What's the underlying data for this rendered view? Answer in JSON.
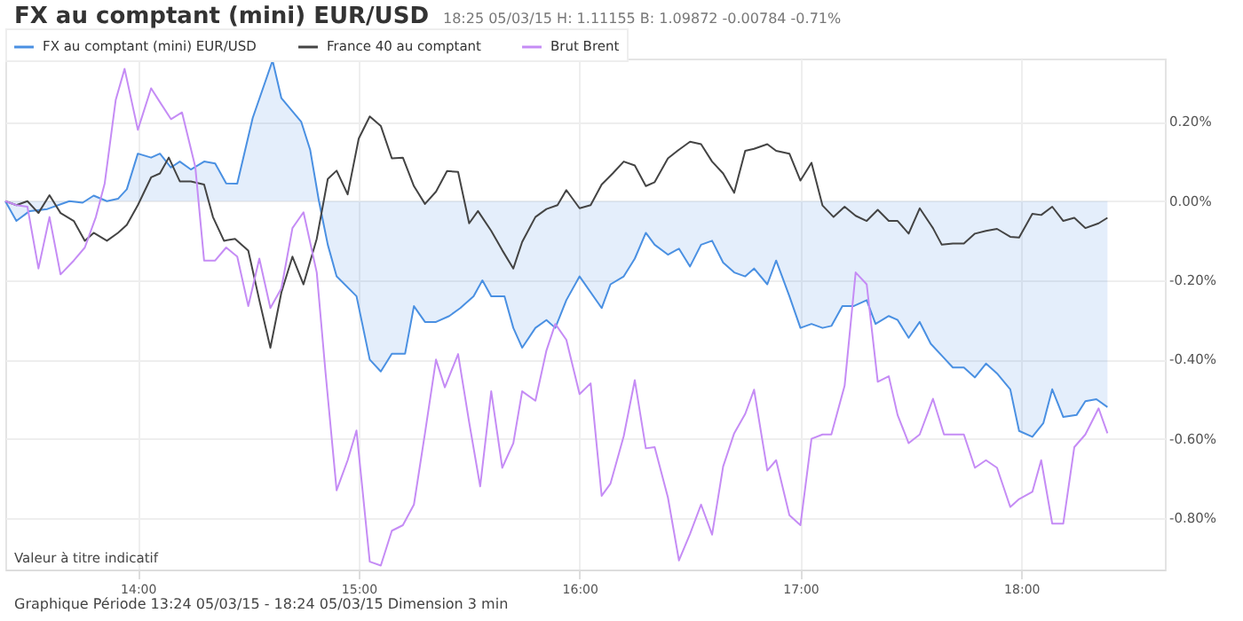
{
  "chart_data": {
    "type": "line",
    "title": "FX au comptant (mini) EUR/USD",
    "subtitle": "18:25 05/03/15   H: 1.11155  B: 1.09872  -0.00784  -0.71%",
    "annotations": [
      "Valeur à titre indicatif",
      "Graphique Période 13:24 05/03/15 - 18:24 05/03/15   Dimension 3 min"
    ],
    "xlim": [
      13.4,
      18.65
    ],
    "xticks": [
      {
        "value": 14,
        "label": "14:00"
      },
      {
        "value": 15,
        "label": "15:00"
      },
      {
        "value": 16,
        "label": "16:00"
      },
      {
        "value": 17,
        "label": "17:00"
      },
      {
        "value": 18,
        "label": "18:00"
      }
    ],
    "ylim": [
      -0.93,
      0.36
    ],
    "yticks": [
      {
        "value": 0.2,
        "label": "0.20%"
      },
      {
        "value": 0,
        "label": "0.00%"
      },
      {
        "value": -0.2,
        "label": "-0.20%"
      },
      {
        "value": -0.4,
        "label": "-0.40%"
      },
      {
        "value": -0.6,
        "label": "-0.60%"
      },
      {
        "value": -0.8,
        "label": "-0.80%"
      }
    ],
    "grid": true,
    "legend": "top left",
    "series": [
      {
        "name": "FX au comptant (mini) EUR/USD",
        "type": "area",
        "color": "#4a90e2",
        "x": [
          13.4,
          13.45,
          13.51,
          13.59,
          13.69,
          13.75,
          13.8,
          13.86,
          13.91,
          13.95,
          14.0,
          14.06,
          14.1,
          14.15,
          14.19,
          14.24,
          14.3,
          14.35,
          14.4,
          14.45,
          14.52,
          14.61,
          14.65,
          14.74,
          14.78,
          14.82,
          14.86,
          14.9,
          14.99,
          15.05,
          15.1,
          15.15,
          15.21,
          15.25,
          15.3,
          15.35,
          15.41,
          15.46,
          15.52,
          15.56,
          15.6,
          15.66,
          15.7,
          15.74,
          15.8,
          15.85,
          15.89,
          15.94,
          16.0,
          16.1,
          16.14,
          16.2,
          16.25,
          16.3,
          16.34,
          16.4,
          16.45,
          16.5,
          16.55,
          16.6,
          16.65,
          16.7,
          16.75,
          16.79,
          16.85,
          16.89,
          16.95,
          17.0,
          17.05,
          17.1,
          17.14,
          17.19,
          17.24,
          17.3,
          17.34,
          17.4,
          17.44,
          17.49,
          17.54,
          17.59,
          17.64,
          17.69,
          17.74,
          17.79,
          17.84,
          17.89,
          17.95,
          17.99,
          18.05,
          18.1,
          18.14,
          18.19,
          18.25,
          18.29,
          18.34,
          18.39
        ],
        "values": [
          0,
          -0.05,
          -0.025,
          -0.02,
          0,
          -0.004,
          0.014,
          0,
          0.006,
          0.03,
          0.12,
          0.11,
          0.12,
          0.085,
          0.1,
          0.08,
          0.1,
          0.095,
          0.045,
          0.044,
          0.21,
          0.355,
          0.26,
          0.2,
          0.13,
          0,
          -0.11,
          -0.19,
          -0.24,
          -0.4,
          -0.43,
          -0.385,
          -0.385,
          -0.265,
          -0.305,
          -0.305,
          -0.29,
          -0.27,
          -0.24,
          -0.2,
          -0.24,
          -0.24,
          -0.32,
          -0.37,
          -0.32,
          -0.3,
          -0.32,
          -0.25,
          -0.19,
          -0.27,
          -0.21,
          -0.19,
          -0.145,
          -0.08,
          -0.11,
          -0.135,
          -0.12,
          -0.165,
          -0.11,
          -0.1,
          -0.155,
          -0.18,
          -0.19,
          -0.17,
          -0.21,
          -0.15,
          -0.24,
          -0.32,
          -0.31,
          -0.32,
          -0.315,
          -0.265,
          -0.265,
          -0.25,
          -0.31,
          -0.29,
          -0.3,
          -0.345,
          -0.305,
          -0.36,
          -0.39,
          -0.42,
          -0.42,
          -0.445,
          -0.41,
          -0.435,
          -0.475,
          -0.58,
          -0.595,
          -0.56,
          -0.475,
          -0.545,
          -0.54,
          -0.505,
          -0.5,
          -0.52
        ]
      },
      {
        "name": "France 40 au comptant",
        "type": "line",
        "color": "#444444",
        "x": [
          13.4,
          13.45,
          13.5,
          13.55,
          13.6,
          13.65,
          13.71,
          13.76,
          13.8,
          13.86,
          13.91,
          13.95,
          14.0,
          14.06,
          14.1,
          14.14,
          14.19,
          14.24,
          14.3,
          14.34,
          14.39,
          14.44,
          14.5,
          14.55,
          14.6,
          14.65,
          14.7,
          14.75,
          14.81,
          14.86,
          14.9,
          14.95,
          15.0,
          15.05,
          15.1,
          15.15,
          15.2,
          15.25,
          15.3,
          15.35,
          15.4,
          15.45,
          15.5,
          15.54,
          15.6,
          15.65,
          15.7,
          15.74,
          15.8,
          15.85,
          15.9,
          15.94,
          16.0,
          16.05,
          16.1,
          16.15,
          16.2,
          16.25,
          16.3,
          16.34,
          16.4,
          16.45,
          16.5,
          16.55,
          16.6,
          16.65,
          16.7,
          16.75,
          16.79,
          16.85,
          16.89,
          16.95,
          17.0,
          17.05,
          17.1,
          17.15,
          17.2,
          17.25,
          17.3,
          17.35,
          17.4,
          17.44,
          17.49,
          17.54,
          17.6,
          17.64,
          17.69,
          17.74,
          17.79,
          17.84,
          17.89,
          17.95,
          17.99,
          18.05,
          18.09,
          18.14,
          18.19,
          18.24,
          18.29,
          18.35,
          18.39
        ],
        "values": [
          0,
          -0.01,
          0,
          -0.03,
          0.015,
          -0.03,
          -0.05,
          -0.1,
          -0.08,
          -0.1,
          -0.08,
          -0.06,
          -0.01,
          0.06,
          0.07,
          0.11,
          0.05,
          0.05,
          0.042,
          -0.04,
          -0.1,
          -0.095,
          -0.125,
          -0.25,
          -0.37,
          -0.23,
          -0.14,
          -0.21,
          -0.095,
          0.056,
          0.077,
          0.017,
          0.158,
          0.214,
          0.19,
          0.108,
          0.11,
          0.038,
          -0.007,
          0.024,
          0.076,
          0.074,
          -0.056,
          -0.025,
          -0.075,
          -0.124,
          -0.17,
          -0.103,
          -0.04,
          -0.02,
          -0.01,
          0.028,
          -0.018,
          -0.01,
          0.042,
          0.07,
          0.1,
          0.09,
          0.038,
          0.048,
          0.108,
          0.13,
          0.15,
          0.144,
          0.1,
          0.07,
          0.021,
          0.127,
          0.132,
          0.144,
          0.127,
          0.12,
          0.052,
          0.097,
          -0.011,
          -0.04,
          -0.014,
          -0.037,
          -0.05,
          -0.022,
          -0.05,
          -0.05,
          -0.082,
          -0.018,
          -0.068,
          -0.11,
          -0.107,
          -0.107,
          -0.082,
          -0.075,
          -0.07,
          -0.09,
          -0.092,
          -0.032,
          -0.035,
          -0.014,
          -0.05,
          -0.042,
          -0.068,
          -0.056,
          -0.042
        ]
      },
      {
        "name": "Brut Brent",
        "type": "line",
        "color": "#c58cf5",
        "x": [
          13.4,
          13.45,
          13.5,
          13.55,
          13.6,
          13.65,
          13.71,
          13.76,
          13.81,
          13.85,
          13.9,
          13.94,
          14.0,
          14.06,
          14.1,
          14.15,
          14.2,
          14.26,
          14.3,
          14.35,
          14.4,
          14.45,
          14.5,
          14.55,
          14.6,
          14.65,
          14.7,
          14.75,
          14.81,
          14.85,
          14.9,
          14.95,
          14.99,
          15.05,
          15.1,
          15.15,
          15.2,
          15.25,
          15.3,
          15.35,
          15.39,
          15.45,
          15.5,
          15.55,
          15.6,
          15.65,
          15.7,
          15.74,
          15.8,
          15.85,
          15.89,
          15.94,
          16.0,
          16.05,
          16.1,
          16.14,
          16.2,
          16.25,
          16.3,
          16.34,
          16.4,
          16.45,
          16.5,
          16.55,
          16.6,
          16.65,
          16.7,
          16.75,
          16.79,
          16.85,
          16.89,
          16.95,
          17.0,
          17.05,
          17.1,
          17.14,
          17.2,
          17.25,
          17.3,
          17.35,
          17.4,
          17.44,
          17.49,
          17.54,
          17.6,
          17.65,
          17.69,
          17.74,
          17.79,
          17.84,
          17.89,
          17.95,
          17.99,
          18.05,
          18.09,
          18.14,
          18.19,
          18.24,
          18.29,
          18.35,
          18.39
        ],
        "values": [
          0,
          -0.01,
          -0.014,
          -0.17,
          -0.04,
          -0.185,
          -0.15,
          -0.117,
          -0.04,
          0.045,
          0.256,
          0.334,
          0.18,
          0.285,
          0.25,
          0.207,
          0.224,
          0.087,
          -0.15,
          -0.15,
          -0.117,
          -0.14,
          -0.265,
          -0.145,
          -0.27,
          -0.22,
          -0.068,
          -0.028,
          -0.18,
          -0.434,
          -0.73,
          -0.654,
          -0.579,
          -0.91,
          -0.92,
          -0.832,
          -0.818,
          -0.766,
          -0.586,
          -0.4,
          -0.47,
          -0.386,
          -0.558,
          -0.72,
          -0.48,
          -0.673,
          -0.611,
          -0.48,
          -0.504,
          -0.377,
          -0.31,
          -0.35,
          -0.487,
          -0.46,
          -0.744,
          -0.713,
          -0.593,
          -0.452,
          -0.624,
          -0.621,
          -0.748,
          -0.907,
          -0.84,
          -0.766,
          -0.842,
          -0.67,
          -0.586,
          -0.537,
          -0.476,
          -0.68,
          -0.654,
          -0.793,
          -0.818,
          -0.6,
          -0.589,
          -0.589,
          -0.466,
          -0.18,
          -0.21,
          -0.456,
          -0.442,
          -0.54,
          -0.611,
          -0.589,
          -0.499,
          -0.589,
          -0.589,
          -0.589,
          -0.673,
          -0.654,
          -0.673,
          -0.772,
          -0.752,
          -0.734,
          -0.654,
          -0.814,
          -0.814,
          -0.621,
          -0.589,
          -0.523,
          -0.586
        ]
      }
    ]
  }
}
